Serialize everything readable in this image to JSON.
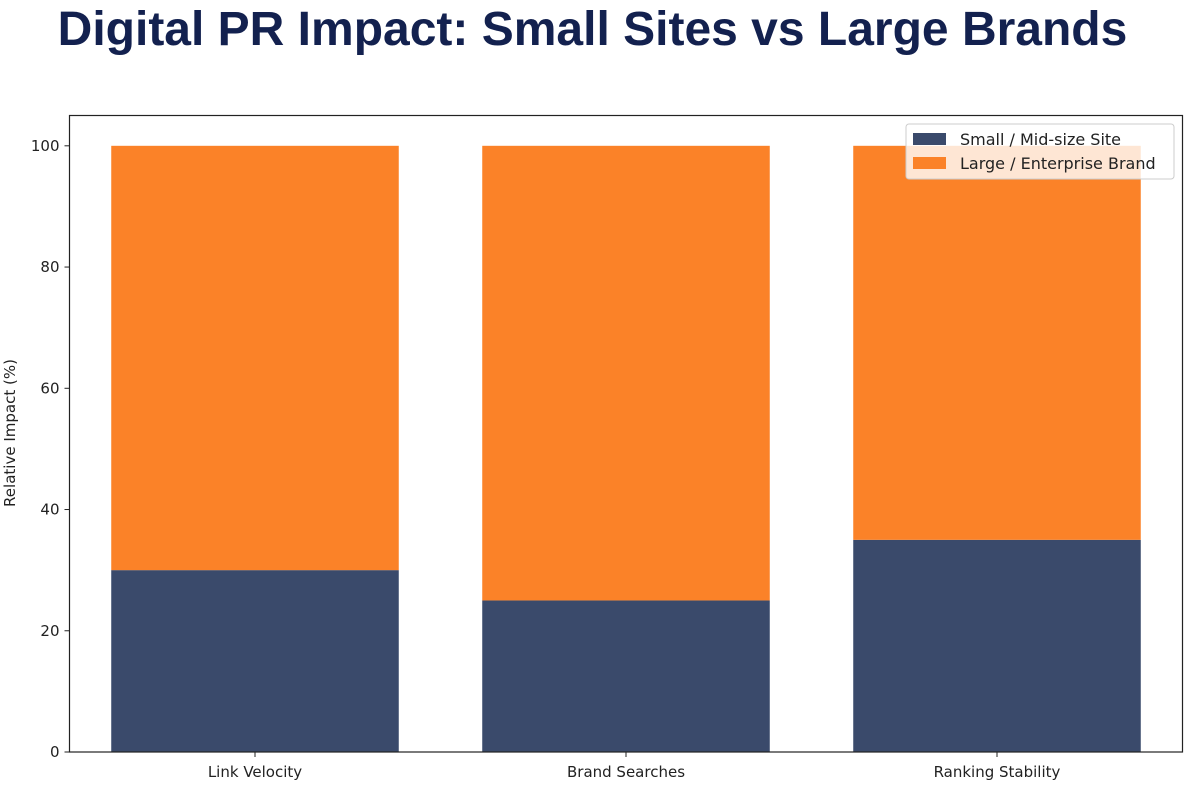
{
  "chart_data": {
    "type": "bar",
    "stacked": true,
    "title": "Digital PR Impact: Small Sites vs Large Brands",
    "xlabel": "",
    "ylabel": "Relative Impact (%)",
    "ylim": [
      0,
      105
    ],
    "yticks": [
      0,
      20,
      40,
      60,
      80,
      100
    ],
    "categories": [
      "Link Velocity",
      "Brand Searches",
      "Ranking Stability"
    ],
    "series": [
      {
        "name": "Small / Mid-size Site",
        "values": [
          30,
          25,
          35
        ],
        "color": "#3a4a6b"
      },
      {
        "name": "Large / Enterprise Brand",
        "values": [
          70,
          75,
          65
        ],
        "color": "#fb8228"
      }
    ],
    "grid": false,
    "legend": "top-right"
  }
}
